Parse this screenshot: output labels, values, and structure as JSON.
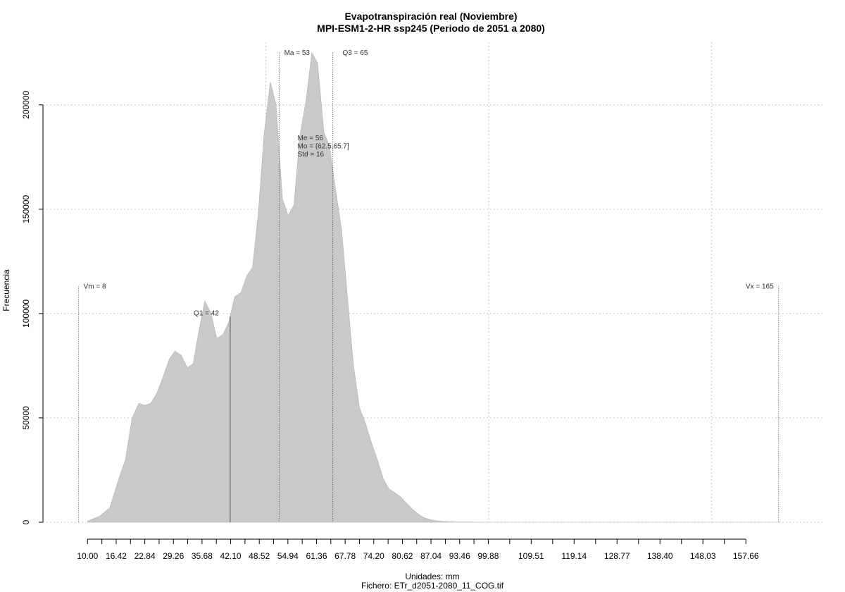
{
  "chart_data": {
    "type": "area",
    "title": "Evapotranspiración real (Noviembre)",
    "subtitle": "MPI-ESM1-2-HR ssp245 (Periodo de 2051 a 2080)",
    "xlabel": "Unidades: mm",
    "ylabel": "Frecuencia",
    "footer": "Fichero: ETr_d2051-2080_11_COG.tif",
    "xlim": [
      0,
      175
    ],
    "ylim": [
      0,
      230000
    ],
    "grid": true,
    "fill_color": "#c9c9c9",
    "x_ticks": [
      "10.00",
      "16.42",
      "22.84",
      "29.26",
      "35.68",
      "42.10",
      "48.52",
      "54.94",
      "61.36",
      "67.78",
      "74.20",
      "80.62",
      "87.04",
      "93.46",
      "99.88",
      "109.51",
      "119.14",
      "128.77",
      "138.40",
      "148.03",
      "157.66"
    ],
    "y_ticks": [
      "0",
      "50000",
      "100000",
      "150000",
      "200000"
    ],
    "x": [
      10.0,
      12.8,
      15.0,
      17.2,
      18.5,
      20.0,
      21.5,
      22.8,
      24.2,
      25.6,
      27.0,
      28.3,
      29.6,
      31.0,
      32.4,
      33.7,
      35.0,
      36.3,
      37.7,
      39.0,
      40.4,
      41.7,
      43.0,
      44.4,
      45.7,
      47.0,
      48.3,
      49.6,
      51.0,
      52.3,
      53.7,
      55.0,
      56.3,
      57.6,
      59.0,
      60.3,
      61.6,
      63.0,
      64.3,
      65.6,
      67.0,
      68.3,
      69.6,
      71.0,
      72.4,
      73.7,
      75.0,
      76.3,
      77.6,
      79.0,
      80.3,
      81.6,
      83.0,
      84.4,
      85.7,
      87.0,
      88.3,
      89.6,
      91.0,
      92.3,
      93.7,
      95.0,
      96.3,
      97.6,
      99.0,
      100.3,
      102.0,
      103.7,
      105.4,
      108.0,
      115.0,
      125.0,
      135.0,
      145.0,
      155.0,
      165.0
    ],
    "y": [
      500,
      3000,
      7000,
      22000,
      30000,
      50000,
      57000,
      56000,
      57000,
      62000,
      70000,
      78000,
      82000,
      80000,
      74000,
      76000,
      92000,
      106000,
      100000,
      88000,
      90000,
      96000,
      108000,
      110000,
      118000,
      122000,
      148000,
      186000,
      211000,
      200000,
      155000,
      147000,
      152000,
      185000,
      202000,
      225000,
      220000,
      187000,
      180000,
      160000,
      140000,
      108000,
      76000,
      55000,
      47000,
      38000,
      30000,
      21000,
      16000,
      14000,
      12000,
      9000,
      6000,
      3500,
      2000,
      1200,
      700,
      400,
      250,
      150,
      100,
      60,
      40,
      25,
      15,
      10,
      8,
      6,
      5,
      4,
      3,
      2,
      1,
      1,
      1,
      0
    ],
    "annotations": {
      "vm": {
        "label": "Vm = 8",
        "x": 8
      },
      "vx": {
        "label": "Vx = 165",
        "x": 165
      },
      "q1": {
        "label": "Q1 = 42",
        "x": 42
      },
      "ma": {
        "label": "Ma = 53",
        "x": 53
      },
      "q3": {
        "label": "Q3 = 65",
        "x": 65
      },
      "stats": [
        "Me = 56",
        "Mo = (62.5,65.7]",
        "Std = 16"
      ]
    }
  }
}
